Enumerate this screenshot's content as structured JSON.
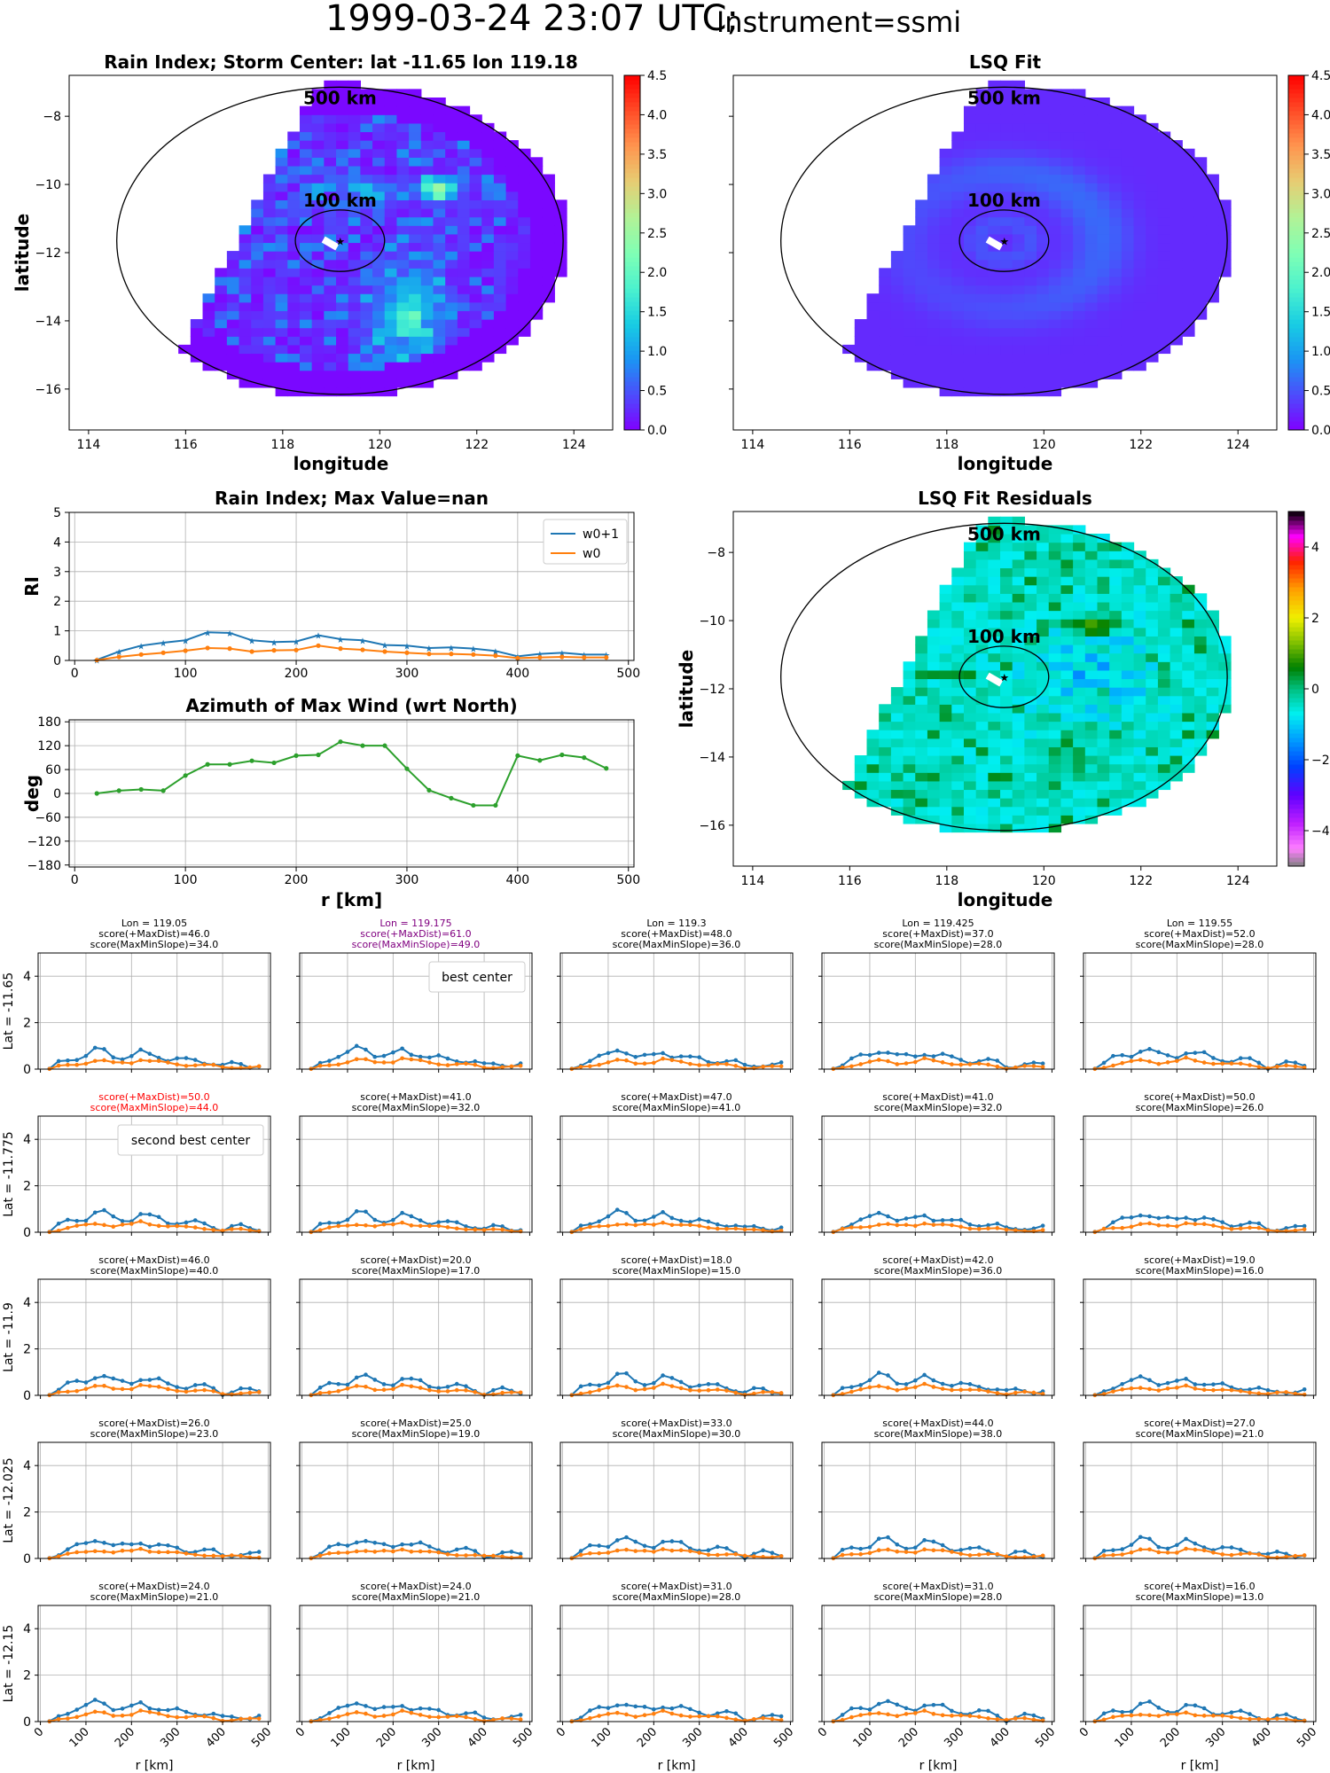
{
  "figure": {
    "suptitle_main": "1999-03-24 23:07 UTC;",
    "suptitle_inst": "Instrument=ssmi"
  },
  "chart_data": [
    {
      "id": "rain_map",
      "type": "heatmap",
      "title": "Rain Index; Storm Center: lat -11.65 lon 119.18",
      "xlabel": "longitude",
      "ylabel": "latitude",
      "xlim": [
        113.6,
        124.8
      ],
      "ylim": [
        -17.2,
        -6.8
      ],
      "xticks": [
        114,
        116,
        118,
        120,
        122,
        124
      ],
      "yticks": [
        -8,
        -10,
        -12,
        -14,
        -16
      ],
      "center": [
        119.18,
        -11.65
      ],
      "ring_labels": [
        "500 km",
        "100 km"
      ],
      "colorbar": {
        "min": 0.0,
        "max": 4.5,
        "ticks": [
          "0.0",
          "0.5",
          "1.0",
          "1.5",
          "2.0",
          "2.5",
          "3.0",
          "3.5",
          "4.0",
          "4.5"
        ],
        "cmap": "rainbow"
      }
    },
    {
      "id": "lsq_map",
      "type": "heatmap",
      "title": "LSQ Fit",
      "xlabel": "longitude",
      "ylabel": "",
      "xlim": [
        113.6,
        124.8
      ],
      "ylim": [
        -17.2,
        -6.8
      ],
      "xticks": [
        114,
        116,
        118,
        120,
        122,
        124
      ],
      "yticks": [
        -8,
        -10,
        -12,
        -14,
        -16
      ],
      "center": [
        119.18,
        -11.65
      ],
      "ring_labels": [
        "500 km",
        "100 km"
      ],
      "colorbar": {
        "min": 0.0,
        "max": 4.5,
        "ticks": [
          "0.0",
          "0.5",
          "1.0",
          "1.5",
          "2.0",
          "2.5",
          "3.0",
          "3.5",
          "4.0",
          "4.5"
        ],
        "cmap": "rainbow"
      }
    },
    {
      "id": "resid_map",
      "type": "heatmap",
      "title": "LSQ Fit Residuals",
      "xlabel": "longitude",
      "ylabel": "latitude",
      "xlim": [
        113.6,
        124.8
      ],
      "ylim": [
        -17.2,
        -6.8
      ],
      "xticks": [
        114,
        116,
        118,
        120,
        122,
        124
      ],
      "yticks": [
        -8,
        -10,
        -12,
        -14,
        -16
      ],
      "center": [
        119.18,
        -11.65
      ],
      "ring_labels": [
        "500 km",
        "100 km"
      ],
      "colorbar": {
        "min": -5,
        "max": 5,
        "ticks": [
          "4",
          "2",
          "0",
          "−2",
          "−4"
        ],
        "cmap": "gist_ncar"
      }
    },
    {
      "id": "ri_profile",
      "type": "line",
      "title": "Rain Index; Max Value=nan",
      "xlabel": "",
      "ylabel": "RI",
      "xlim": [
        -5,
        505
      ],
      "ylim": [
        0,
        5
      ],
      "xticks": [
        "0",
        "100",
        "200",
        "300",
        "400",
        "500"
      ],
      "yticks": [
        "0",
        "1",
        "2",
        "3",
        "4",
        "5"
      ],
      "x": [
        20,
        40,
        60,
        80,
        100,
        120,
        140,
        160,
        180,
        200,
        220,
        240,
        260,
        280,
        300,
        320,
        340,
        360,
        380,
        400,
        420,
        440,
        460,
        480
      ],
      "series": [
        {
          "name": "w0+1",
          "color": "#1f77b4",
          "marker": "star",
          "values": [
            0.02,
            0.3,
            0.5,
            0.6,
            0.68,
            0.95,
            0.93,
            0.68,
            0.62,
            0.64,
            0.85,
            0.72,
            0.68,
            0.52,
            0.5,
            0.42,
            0.44,
            0.4,
            0.32,
            0.14,
            0.22,
            0.26,
            0.2,
            0.2
          ]
        },
        {
          "name": "w0",
          "color": "#ff7f0e",
          "marker": "dot",
          "values": [
            0.01,
            0.12,
            0.2,
            0.26,
            0.33,
            0.42,
            0.4,
            0.3,
            0.34,
            0.35,
            0.5,
            0.4,
            0.36,
            0.3,
            0.26,
            0.22,
            0.22,
            0.2,
            0.16,
            0.08,
            0.1,
            0.12,
            0.1,
            0.1
          ]
        }
      ]
    },
    {
      "id": "azimuth",
      "type": "line",
      "title": "Azimuth of Max Wind (wrt North)",
      "xlabel": "r [km]",
      "ylabel": "deg",
      "xlim": [
        -5,
        505
      ],
      "ylim": [
        -185,
        185
      ],
      "xticks": [
        "0",
        "100",
        "200",
        "300",
        "400",
        "500"
      ],
      "yticks": [
        "180",
        "120",
        "60",
        "0",
        "−60",
        "−120",
        "−180"
      ],
      "x": [
        20,
        40,
        60,
        80,
        100,
        120,
        140,
        160,
        180,
        200,
        220,
        240,
        260,
        280,
        300,
        320,
        340,
        360,
        380,
        400,
        420,
        440,
        460,
        480
      ],
      "series": [
        {
          "name": "",
          "color": "#2ca02c",
          "values": [
            0,
            7,
            10,
            7,
            45,
            73,
            73,
            82,
            77,
            95,
            97,
            130,
            120,
            120,
            62,
            8,
            -12,
            -30,
            -30,
            95,
            83,
            97,
            90,
            63
          ]
        }
      ]
    },
    {
      "id": "grid",
      "type": "line",
      "ylim": [
        0,
        5
      ],
      "yticks": [
        "0",
        "2",
        "4"
      ],
      "xlim": [
        -5,
        505
      ],
      "xticks": [
        "0",
        "100",
        "200",
        "300",
        "400",
        "500"
      ],
      "xlabel": "r [km]",
      "row_labels": [
        "Lat = -11.65",
        "Lat = -11.775",
        "Lat = -11.9",
        "Lat = -12.025",
        "Lat = -12.15"
      ],
      "cells": [
        [
          {
            "lines": [
              "Lon = 119.05",
              "score(+MaxDist)=46.0",
              "score(MaxMinSlope)=34.0"
            ],
            "color": "#000000",
            "amp": 0.85,
            "phase": 1
          },
          {
            "lines": [
              "Lon = 119.175",
              "score(+MaxDist)=61.0",
              "score(MaxMinSlope)=49.0"
            ],
            "color": "#800080",
            "legend": "best center",
            "amp": 0.95,
            "phase": 2
          },
          {
            "lines": [
              "Lon = 119.3",
              "score(+MaxDist)=48.0",
              "score(MaxMinSlope)=36.0"
            ],
            "color": "#000000",
            "amp": 0.85,
            "phase": 3
          },
          {
            "lines": [
              "Lon = 119.425",
              "score(+MaxDist)=37.0",
              "score(MaxMinSlope)=28.0"
            ],
            "color": "#000000",
            "amp": 0.85,
            "phase": 4
          },
          {
            "lines": [
              "Lon = 119.55",
              "score(+MaxDist)=52.0",
              "score(MaxMinSlope)=28.0"
            ],
            "color": "#000000",
            "amp": 0.9,
            "phase": 5
          }
        ],
        [
          {
            "lines": [
              "score(+MaxDist)=50.0",
              "score(MaxMinSlope)=44.0"
            ],
            "color": "#ff0000",
            "legend": "second best center",
            "amp": 0.9,
            "phase": 6
          },
          {
            "lines": [
              "score(+MaxDist)=41.0",
              "score(MaxMinSlope)=32.0"
            ],
            "color": "#000000",
            "amp": 0.85,
            "phase": 7
          },
          {
            "lines": [
              "score(+MaxDist)=47.0",
              "score(MaxMinSlope)=41.0"
            ],
            "color": "#000000",
            "amp": 0.9,
            "phase": 8
          },
          {
            "lines": [
              "score(+MaxDist)=41.0",
              "score(MaxMinSlope)=32.0"
            ],
            "color": "#000000",
            "amp": 0.85,
            "phase": 9
          },
          {
            "lines": [
              "score(+MaxDist)=50.0",
              "score(MaxMinSlope)=26.0"
            ],
            "color": "#000000",
            "amp": 0.85,
            "phase": 10
          }
        ],
        [
          {
            "lines": [
              "score(+MaxDist)=46.0",
              "score(MaxMinSlope)=40.0"
            ],
            "color": "#000000",
            "amp": 0.9,
            "phase": 11
          },
          {
            "lines": [
              "score(+MaxDist)=20.0",
              "score(MaxMinSlope)=17.0"
            ],
            "color": "#000000",
            "amp": 0.85,
            "phase": 12
          },
          {
            "lines": [
              "score(+MaxDist)=18.0",
              "score(MaxMinSlope)=15.0"
            ],
            "color": "#000000",
            "amp": 0.9,
            "phase": 13
          },
          {
            "lines": [
              "score(+MaxDist)=42.0",
              "score(MaxMinSlope)=36.0"
            ],
            "color": "#000000",
            "amp": 0.9,
            "phase": 14
          },
          {
            "lines": [
              "score(+MaxDist)=19.0",
              "score(MaxMinSlope)=16.0"
            ],
            "color": "#000000",
            "amp": 0.8,
            "phase": 15
          }
        ],
        [
          {
            "lines": [
              "score(+MaxDist)=26.0",
              "score(MaxMinSlope)=23.0"
            ],
            "color": "#000000",
            "amp": 0.85,
            "phase": 16
          },
          {
            "lines": [
              "score(+MaxDist)=25.0",
              "score(MaxMinSlope)=19.0"
            ],
            "color": "#000000",
            "amp": 0.85,
            "phase": 17
          },
          {
            "lines": [
              "score(+MaxDist)=33.0",
              "score(MaxMinSlope)=30.0"
            ],
            "color": "#000000",
            "amp": 0.9,
            "phase": 18
          },
          {
            "lines": [
              "score(+MaxDist)=44.0",
              "score(MaxMinSlope)=38.0"
            ],
            "color": "#000000",
            "amp": 0.85,
            "phase": 19
          },
          {
            "lines": [
              "score(+MaxDist)=27.0",
              "score(MaxMinSlope)=21.0"
            ],
            "color": "#000000",
            "amp": 0.85,
            "phase": 20
          }
        ],
        [
          {
            "lines": [
              "score(+MaxDist)=24.0",
              "score(MaxMinSlope)=21.0"
            ],
            "color": "#000000",
            "amp": 0.9,
            "phase": 21
          },
          {
            "lines": [
              "score(+MaxDist)=24.0",
              "score(MaxMinSlope)=21.0"
            ],
            "color": "#000000",
            "amp": 0.85,
            "phase": 22
          },
          {
            "lines": [
              "score(+MaxDist)=31.0",
              "score(MaxMinSlope)=28.0"
            ],
            "color": "#000000",
            "amp": 0.85,
            "phase": 23
          },
          {
            "lines": [
              "score(+MaxDist)=31.0",
              "score(MaxMinSlope)=28.0"
            ],
            "color": "#000000",
            "amp": 0.9,
            "phase": 24
          },
          {
            "lines": [
              "score(+MaxDist)=16.0",
              "score(MaxMinSlope)=13.0"
            ],
            "color": "#000000",
            "amp": 0.8,
            "phase": 25
          }
        ]
      ]
    }
  ]
}
